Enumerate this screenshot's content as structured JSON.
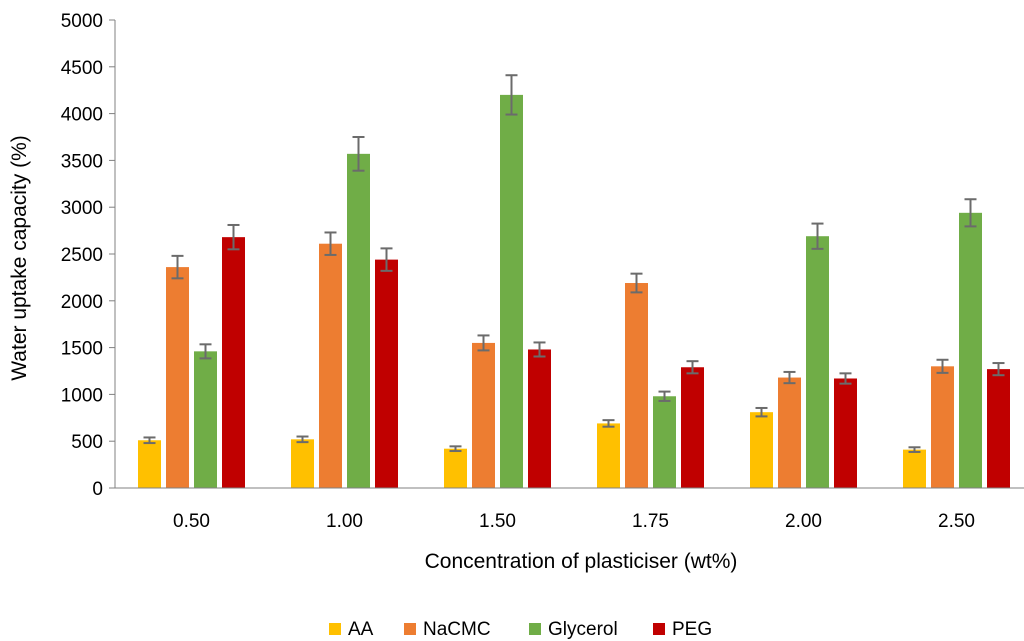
{
  "chart_data": {
    "type": "bar",
    "xlabel": "Concentration of plasticiser (wt%)",
    "ylabel": "Water uptake capacity (%)",
    "ylim": [
      0,
      5000
    ],
    "yticks": [
      0,
      500,
      1000,
      1500,
      2000,
      2500,
      3000,
      3500,
      4000,
      4500,
      5000
    ],
    "grid": false,
    "legend_position": "bottom",
    "categories": [
      "0.50",
      "1.00",
      "1.50",
      "1.75",
      "2.00",
      "2.50"
    ],
    "series": [
      {
        "name": "AA",
        "color": "#FFC000",
        "values": [
          510,
          520,
          420,
          690,
          810,
          410
        ],
        "errors": [
          30,
          30,
          25,
          35,
          45,
          25
        ]
      },
      {
        "name": "NaCMC",
        "color": "#ED7D31",
        "values": [
          2360,
          2610,
          1550,
          2190,
          1180,
          1300
        ],
        "errors": [
          120,
          120,
          80,
          100,
          60,
          70
        ]
      },
      {
        "name": "Glycerol",
        "color": "#70AD47",
        "values": [
          1460,
          3570,
          4200,
          980,
          2690,
          2940
        ],
        "errors": [
          75,
          180,
          210,
          50,
          135,
          145
        ]
      },
      {
        "name": "PEG",
        "color": "#C00000",
        "values": [
          2680,
          2440,
          1480,
          1290,
          1170,
          1270
        ],
        "errors": [
          130,
          120,
          75,
          65,
          55,
          65
        ]
      }
    ]
  }
}
